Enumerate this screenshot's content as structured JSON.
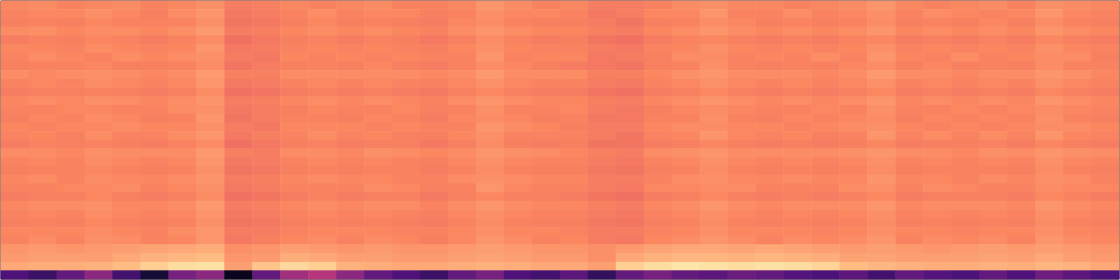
{
  "chart_data": {
    "type": "heatmap",
    "tick_labels": false,
    "zlim": [
      0,
      100
    ],
    "z": [
      [
        75,
        76,
        74,
        75,
        76,
        74,
        75,
        77,
        72,
        73,
        75,
        74,
        75,
        76,
        74,
        74,
        75,
        78,
        76,
        74,
        75,
        72,
        72,
        74,
        76,
        77,
        75,
        75,
        74,
        75,
        76,
        78,
        75,
        74,
        75,
        76,
        74,
        77,
        76,
        75
      ],
      [
        74,
        75,
        75,
        77,
        75,
        73,
        76,
        78,
        71,
        72,
        74,
        76,
        74,
        75,
        75,
        73,
        74,
        77,
        75,
        75,
        74,
        71,
        72,
        75,
        75,
        78,
        74,
        74,
        76,
        74,
        75,
        77,
        74,
        76,
        75,
        74,
        75,
        78,
        75,
        74
      ],
      [
        73,
        74,
        73,
        75,
        74,
        74,
        74,
        77,
        70,
        71,
        73,
        75,
        73,
        74,
        73,
        72,
        75,
        76,
        74,
        73,
        73,
        72,
        70,
        73,
        74,
        76,
        75,
        73,
        74,
        73,
        74,
        76,
        73,
        74,
        73,
        75,
        73,
        76,
        74,
        73
      ],
      [
        76,
        77,
        75,
        76,
        76,
        75,
        77,
        79,
        72,
        73,
        75,
        76,
        75,
        76,
        75,
        74,
        76,
        78,
        76,
        75,
        75,
        73,
        72,
        75,
        76,
        78,
        76,
        75,
        76,
        75,
        76,
        78,
        75,
        76,
        75,
        76,
        75,
        78,
        76,
        75
      ],
      [
        72,
        74,
        73,
        75,
        74,
        72,
        74,
        76,
        69,
        71,
        73,
        74,
        72,
        74,
        73,
        71,
        73,
        76,
        74,
        72,
        73,
        70,
        69,
        72,
        74,
        75,
        73,
        72,
        73,
        72,
        74,
        75,
        72,
        73,
        72,
        74,
        72,
        75,
        73,
        72
      ],
      [
        75,
        75,
        74,
        76,
        75,
        74,
        75,
        78,
        71,
        72,
        74,
        75,
        74,
        75,
        74,
        73,
        75,
        77,
        75,
        74,
        74,
        72,
        71,
        74,
        75,
        77,
        75,
        74,
        75,
        74,
        75,
        77,
        74,
        75,
        74,
        75,
        74,
        77,
        75,
        74
      ],
      [
        74,
        76,
        75,
        74,
        76,
        75,
        76,
        77,
        72,
        71,
        75,
        74,
        75,
        74,
        75,
        74,
        74,
        78,
        74,
        75,
        75,
        71,
        72,
        73,
        76,
        76,
        74,
        75,
        74,
        76,
        74,
        78,
        75,
        74,
        76,
        74,
        75,
        76,
        76,
        73
      ],
      [
        73,
        74,
        74,
        75,
        73,
        73,
        74,
        76,
        70,
        72,
        73,
        74,
        73,
        75,
        73,
        72,
        74,
        76,
        75,
        73,
        72,
        71,
        70,
        73,
        74,
        77,
        74,
        73,
        74,
        73,
        75,
        76,
        73,
        75,
        73,
        74,
        73,
        76,
        74,
        74
      ],
      [
        76,
        75,
        76,
        77,
        76,
        75,
        76,
        79,
        73,
        73,
        76,
        76,
        76,
        76,
        76,
        75,
        76,
        79,
        76,
        76,
        76,
        73,
        73,
        75,
        77,
        78,
        76,
        76,
        76,
        75,
        76,
        79,
        76,
        76,
        75,
        76,
        76,
        78,
        77,
        75
      ],
      [
        74,
        75,
        74,
        76,
        75,
        74,
        75,
        78,
        71,
        72,
        74,
        75,
        74,
        75,
        74,
        73,
        75,
        77,
        75,
        74,
        74,
        72,
        71,
        74,
        75,
        77,
        75,
        74,
        75,
        74,
        75,
        77,
        74,
        75,
        74,
        75,
        74,
        77,
        75,
        74
      ],
      [
        72,
        73,
        73,
        74,
        73,
        72,
        73,
        76,
        69,
        70,
        72,
        73,
        72,
        73,
        72,
        71,
        73,
        75,
        73,
        72,
        72,
        70,
        69,
        72,
        73,
        75,
        73,
        72,
        73,
        72,
        73,
        75,
        72,
        73,
        72,
        73,
        72,
        75,
        73,
        72
      ],
      [
        75,
        76,
        75,
        77,
        76,
        75,
        76,
        78,
        72,
        73,
        75,
        76,
        75,
        76,
        75,
        74,
        76,
        78,
        76,
        75,
        75,
        73,
        72,
        75,
        76,
        78,
        76,
        75,
        76,
        75,
        76,
        78,
        75,
        76,
        75,
        76,
        75,
        78,
        76,
        75
      ],
      [
        74,
        74,
        75,
        75,
        74,
        74,
        76,
        77,
        71,
        72,
        73,
        75,
        74,
        74,
        75,
        73,
        74,
        77,
        74,
        74,
        75,
        72,
        71,
        73,
        75,
        76,
        75,
        74,
        74,
        75,
        74,
        77,
        74,
        74,
        75,
        74,
        75,
        76,
        75,
        74
      ],
      [
        73,
        75,
        74,
        76,
        75,
        73,
        74,
        78,
        70,
        72,
        74,
        74,
        73,
        75,
        74,
        72,
        75,
        76,
        75,
        73,
        74,
        71,
        71,
        74,
        74,
        77,
        74,
        73,
        75,
        74,
        75,
        76,
        73,
        75,
        74,
        75,
        74,
        77,
        74,
        73
      ],
      [
        75,
        74,
        75,
        75,
        76,
        75,
        75,
        77,
        72,
        71,
        75,
        75,
        75,
        74,
        75,
        74,
        74,
        78,
        76,
        75,
        73,
        72,
        72,
        75,
        76,
        76,
        75,
        75,
        74,
        75,
        76,
        77,
        75,
        74,
        75,
        74,
        75,
        76,
        76,
        75
      ],
      [
        74,
        75,
        73,
        76,
        74,
        74,
        76,
        78,
        71,
        73,
        74,
        76,
        74,
        75,
        73,
        73,
        75,
        77,
        74,
        74,
        74,
        72,
        70,
        74,
        75,
        78,
        75,
        74,
        75,
        73,
        74,
        78,
        74,
        76,
        74,
        76,
        74,
        78,
        75,
        74
      ],
      [
        72,
        74,
        73,
        74,
        73,
        72,
        74,
        76,
        69,
        71,
        73,
        74,
        72,
        73,
        73,
        71,
        73,
        76,
        73,
        72,
        73,
        70,
        70,
        72,
        73,
        75,
        73,
        72,
        73,
        72,
        73,
        75,
        72,
        73,
        73,
        74,
        72,
        75,
        73,
        72
      ],
      [
        76,
        76,
        75,
        77,
        76,
        76,
        76,
        79,
        73,
        72,
        76,
        76,
        75,
        77,
        76,
        75,
        76,
        78,
        77,
        76,
        75,
        73,
        72,
        76,
        77,
        78,
        76,
        76,
        76,
        76,
        77,
        78,
        76,
        76,
        75,
        77,
        76,
        78,
        77,
        76
      ],
      [
        74,
        75,
        74,
        76,
        75,
        74,
        75,
        78,
        71,
        72,
        74,
        75,
        74,
        75,
        74,
        73,
        75,
        77,
        75,
        74,
        74,
        72,
        71,
        74,
        75,
        77,
        75,
        74,
        75,
        74,
        75,
        77,
        74,
        75,
        74,
        75,
        74,
        77,
        75,
        74
      ],
      [
        73,
        74,
        74,
        75,
        74,
        73,
        74,
        77,
        70,
        71,
        73,
        74,
        73,
        74,
        74,
        72,
        74,
        76,
        74,
        73,
        73,
        71,
        70,
        73,
        74,
        76,
        74,
        73,
        74,
        73,
        74,
        76,
        73,
        74,
        74,
        74,
        73,
        76,
        74,
        73
      ],
      [
        75,
        76,
        74,
        76,
        75,
        75,
        76,
        78,
        72,
        73,
        75,
        76,
        75,
        75,
        74,
        74,
        76,
        77,
        76,
        75,
        75,
        72,
        72,
        74,
        76,
        77,
        75,
        75,
        76,
        75,
        75,
        78,
        75,
        75,
        74,
        76,
        75,
        77,
        76,
        74
      ],
      [
        74,
        74,
        75,
        75,
        76,
        74,
        75,
        77,
        71,
        72,
        74,
        74,
        74,
        76,
        75,
        73,
        74,
        78,
        75,
        74,
        74,
        72,
        71,
        75,
        75,
        76,
        76,
        74,
        74,
        74,
        76,
        77,
        74,
        76,
        75,
        74,
        74,
        76,
        75,
        75
      ],
      [
        72,
        73,
        73,
        75,
        73,
        72,
        73,
        76,
        69,
        70,
        72,
        74,
        72,
        73,
        73,
        71,
        73,
        75,
        73,
        73,
        72,
        70,
        69,
        72,
        73,
        75,
        73,
        72,
        73,
        72,
        73,
        75,
        72,
        73,
        73,
        73,
        72,
        75,
        74,
        72
      ],
      [
        75,
        76,
        76,
        77,
        75,
        75,
        76,
        79,
        72,
        73,
        75,
        76,
        75,
        76,
        76,
        74,
        76,
        78,
        76,
        75,
        75,
        73,
        72,
        75,
        76,
        78,
        76,
        75,
        76,
        76,
        76,
        78,
        75,
        76,
        76,
        76,
        75,
        78,
        76,
        75
      ],
      [
        74,
        75,
        74,
        76,
        75,
        74,
        75,
        78,
        71,
        72,
        74,
        75,
        74,
        75,
        74,
        73,
        75,
        77,
        75,
        74,
        74,
        72,
        71,
        74,
        75,
        77,
        75,
        74,
        75,
        74,
        75,
        77,
        74,
        75,
        74,
        75,
        74,
        77,
        75,
        74
      ],
      [
        73,
        74,
        73,
        75,
        74,
        73,
        74,
        77,
        70,
        71,
        73,
        74,
        73,
        74,
        73,
        72,
        74,
        76,
        74,
        73,
        73,
        71,
        70,
        73,
        74,
        76,
        74,
        73,
        74,
        73,
        74,
        76,
        73,
        74,
        73,
        74,
        73,
        76,
        74,
        73
      ],
      [
        75,
        75,
        75,
        76,
        75,
        74,
        76,
        78,
        72,
        72,
        74,
        75,
        75,
        75,
        74,
        74,
        75,
        77,
        75,
        75,
        74,
        72,
        72,
        74,
        75,
        77,
        75,
        75,
        75,
        74,
        75,
        77,
        75,
        75,
        74,
        75,
        75,
        77,
        75,
        74
      ],
      [
        74,
        76,
        74,
        77,
        76,
        74,
        75,
        78,
        71,
        73,
        75,
        76,
        74,
        76,
        75,
        73,
        75,
        78,
        76,
        74,
        75,
        72,
        71,
        75,
        76,
        78,
        76,
        74,
        76,
        75,
        76,
        78,
        74,
        76,
        75,
        76,
        74,
        78,
        76,
        75
      ],
      [
        78,
        79,
        78,
        79,
        80,
        81,
        82,
        83,
        77,
        78,
        80,
        79,
        78,
        79,
        78,
        78,
        79,
        80,
        79,
        78,
        78,
        77,
        79,
        81,
        82,
        82,
        81,
        82,
        81,
        80,
        79,
        80,
        79,
        78,
        79,
        80,
        79,
        80,
        79,
        78
      ],
      [
        79,
        80,
        80,
        80,
        82,
        84,
        85,
        86,
        78,
        79,
        83,
        82,
        80,
        80,
        79,
        79,
        80,
        81,
        80,
        79,
        79,
        77,
        82,
        84,
        85,
        85,
        84,
        85,
        84,
        83,
        81,
        81,
        80,
        80,
        80,
        81,
        80,
        82,
        80,
        79
      ],
      [
        82,
        83,
        83,
        84,
        86,
        90,
        93,
        94,
        80,
        88,
        92,
        90,
        84,
        83,
        82,
        82,
        83,
        84,
        83,
        82,
        82,
        80,
        90,
        93,
        95,
        94,
        93,
        94,
        93,
        91,
        86,
        85,
        84,
        83,
        83,
        84,
        83,
        85,
        84,
        82
      ],
      [
        25,
        20,
        30,
        40,
        22,
        10,
        35,
        40,
        5,
        30,
        45,
        50,
        40,
        30,
        25,
        20,
        30,
        35,
        25,
        22,
        28,
        18,
        30,
        35,
        30,
        28,
        32,
        30,
        26,
        24,
        28,
        22,
        30,
        26,
        24,
        30,
        25,
        33,
        28,
        24
      ]
    ]
  }
}
